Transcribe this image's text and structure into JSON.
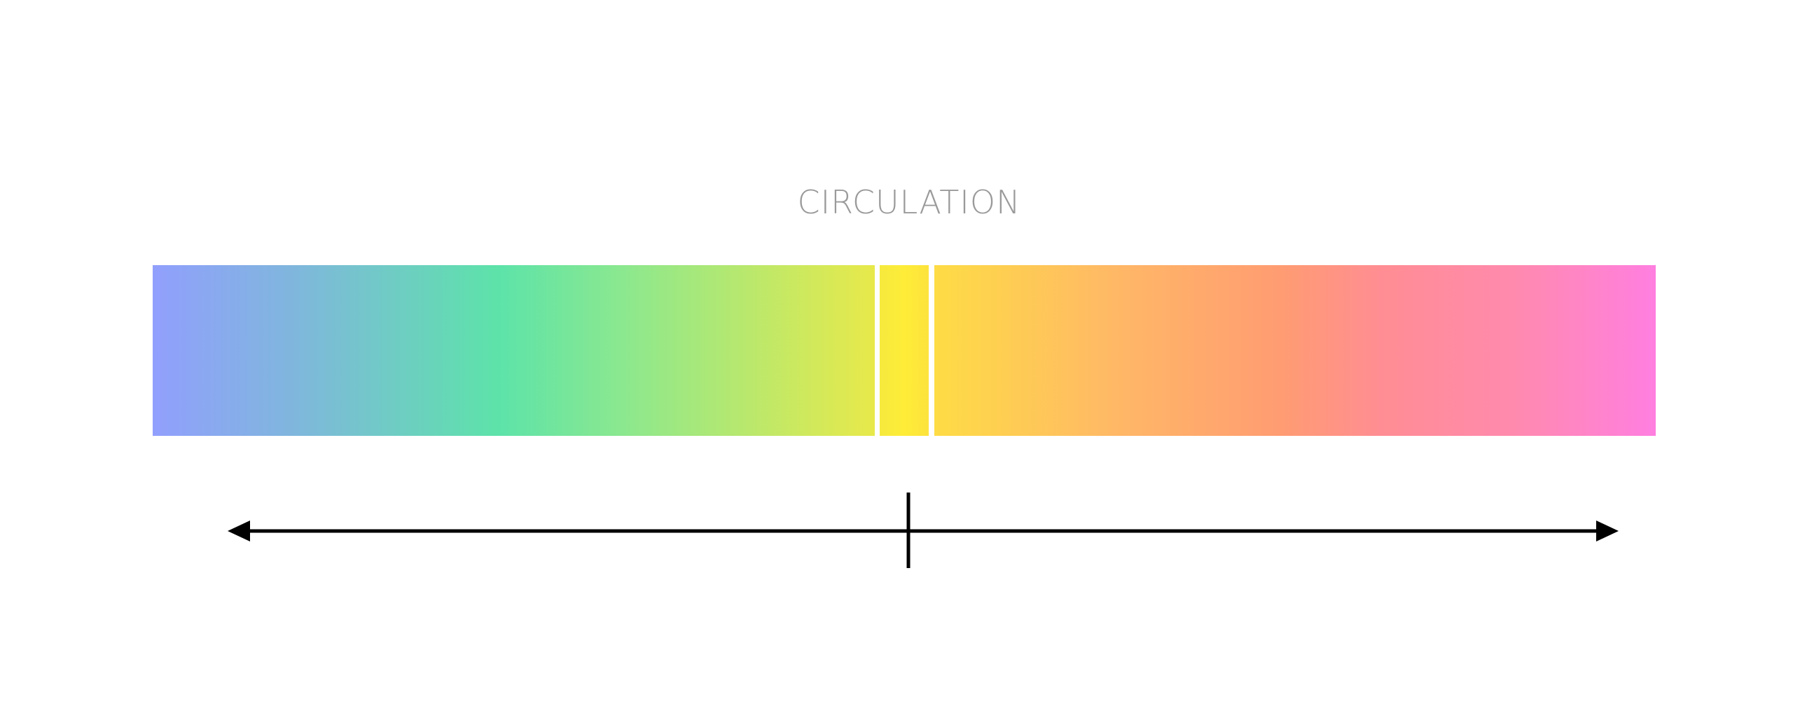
{
  "title": "CIRCULATION",
  "gradient": {
    "stops": [
      "#919ffd",
      "#5de3a9",
      "#fdea3c",
      "#ff9c72",
      "#ff7fe0"
    ],
    "segments": [
      "left",
      "center",
      "right"
    ]
  },
  "axis": {
    "type": "double-headed-arrow",
    "center_marker": true,
    "color": "#000000"
  }
}
